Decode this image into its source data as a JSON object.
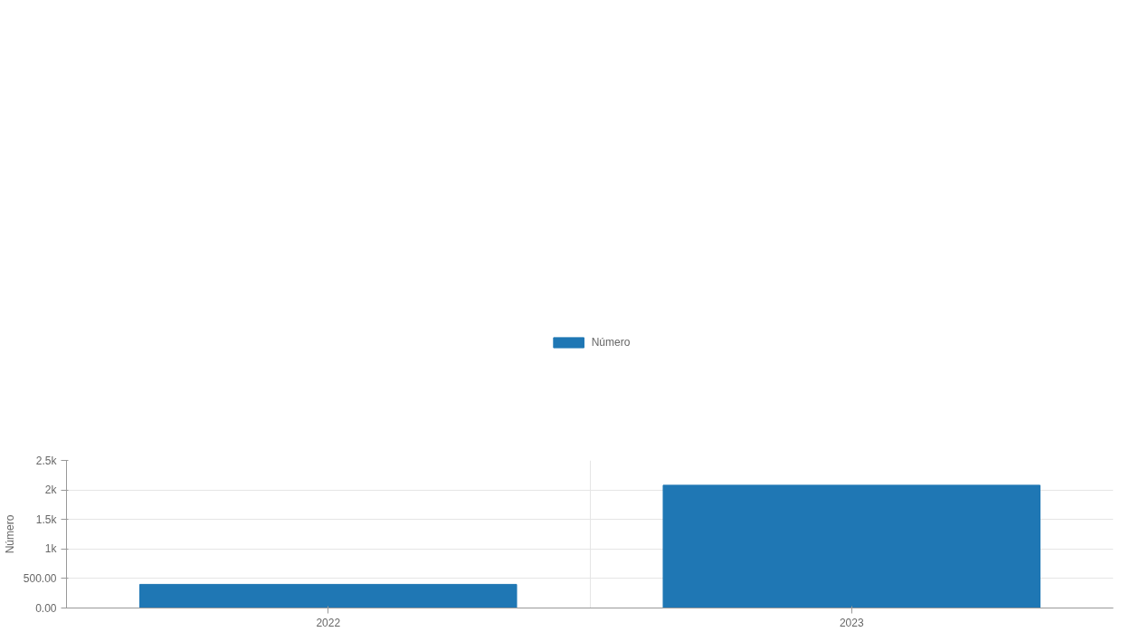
{
  "chart_data": {
    "type": "bar",
    "ylabel": "Número",
    "categories": [
      "2022",
      "2023"
    ],
    "series": [
      {
        "name": "Número",
        "color": "#1f77b4",
        "values": [
          400,
          2080
        ]
      }
    ],
    "ylim": [
      0,
      2500
    ],
    "yticks": [
      {
        "value": 0,
        "label": "0.00"
      },
      {
        "value": 500,
        "label": "500.00"
      },
      {
        "value": 1000,
        "label": "1k"
      },
      {
        "value": 1500,
        "label": "1.5k"
      },
      {
        "value": 2000,
        "label": "2k"
      },
      {
        "value": 2500,
        "label": "2.5k"
      }
    ],
    "grid": true,
    "legend": "top"
  }
}
